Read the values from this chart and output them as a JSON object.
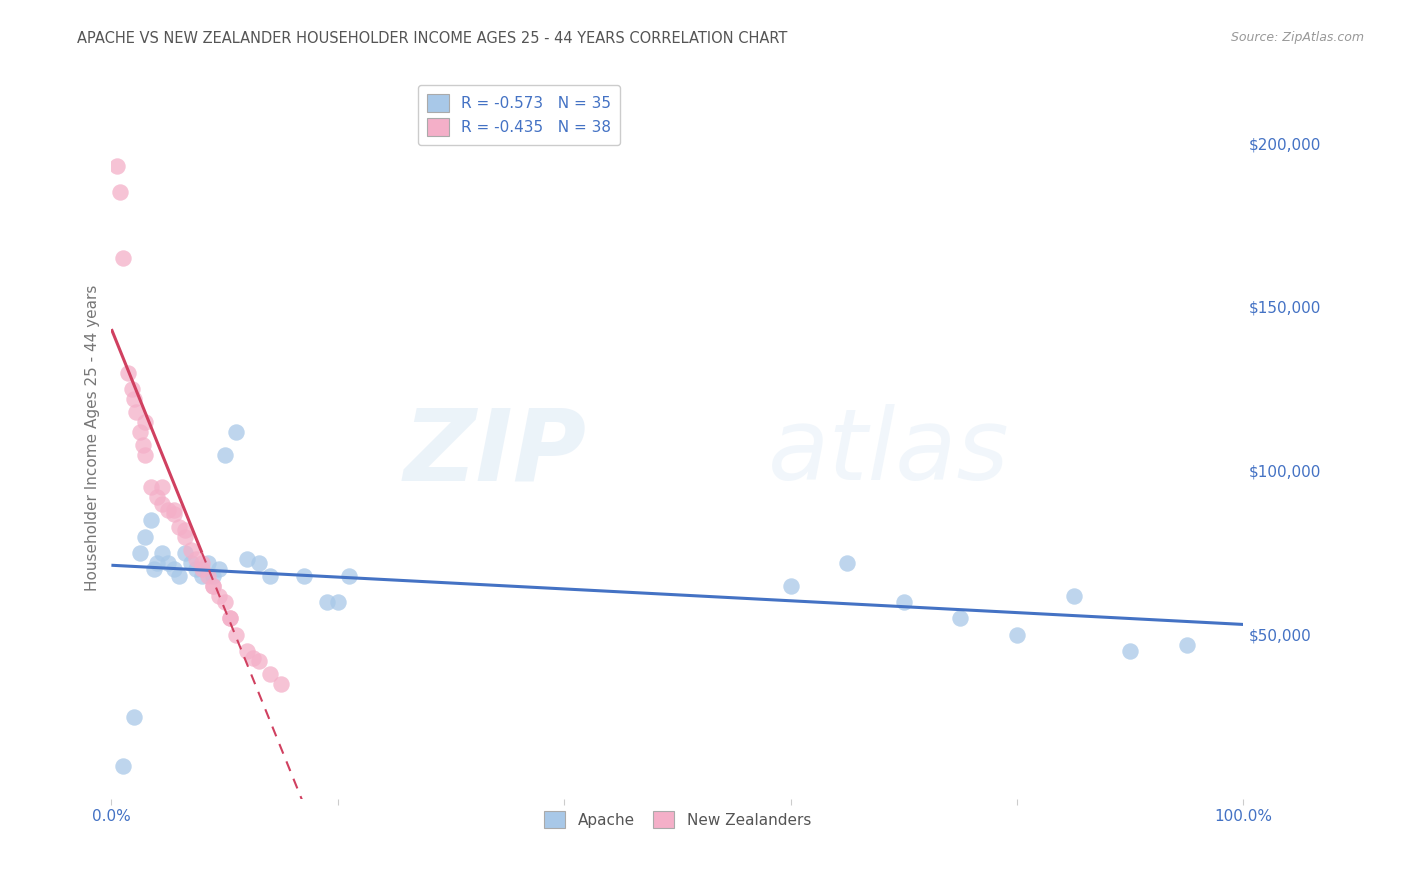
{
  "title": "APACHE VS NEW ZEALANDER HOUSEHOLDER INCOME AGES 25 - 44 YEARS CORRELATION CHART",
  "source": "Source: ZipAtlas.com",
  "ylabel": "Householder Income Ages 25 - 44 years",
  "legend_apache_r": "-0.573",
  "legend_apache_n": "35",
  "legend_nz_r": "-0.435",
  "legend_nz_n": "38",
  "apache_color": "#a8c8e8",
  "apache_line_color": "#4472c4",
  "nz_color": "#f4afc8",
  "nz_line_color": "#d04060",
  "apache_x": [
    1.0,
    2.0,
    2.5,
    3.0,
    3.5,
    3.8,
    4.0,
    4.5,
    5.0,
    5.5,
    6.0,
    6.5,
    7.0,
    7.5,
    8.0,
    8.5,
    9.0,
    9.5,
    10.0,
    11.0,
    12.0,
    13.0,
    14.0,
    17.0,
    19.0,
    20.0,
    21.0,
    60.0,
    65.0,
    70.0,
    75.0,
    80.0,
    85.0,
    90.0,
    95.0
  ],
  "apache_y": [
    10000,
    25000,
    75000,
    80000,
    85000,
    70000,
    72000,
    75000,
    72000,
    70000,
    68000,
    75000,
    72000,
    70000,
    68000,
    72000,
    68000,
    70000,
    105000,
    112000,
    73000,
    72000,
    68000,
    68000,
    60000,
    60000,
    68000,
    65000,
    72000,
    60000,
    55000,
    50000,
    62000,
    45000,
    47000
  ],
  "nz_x": [
    0.5,
    0.8,
    1.0,
    1.5,
    1.8,
    2.0,
    2.2,
    2.5,
    2.8,
    3.0,
    3.5,
    4.0,
    4.5,
    5.0,
    5.5,
    6.0,
    6.5,
    7.0,
    7.5,
    8.0,
    8.5,
    9.0,
    9.5,
    10.0,
    10.5,
    11.0,
    12.0,
    13.0,
    14.0,
    15.0,
    3.0,
    4.5,
    5.5,
    6.5,
    8.0,
    9.0,
    10.5,
    12.5
  ],
  "nz_y": [
    193000,
    185000,
    165000,
    130000,
    125000,
    122000,
    118000,
    112000,
    108000,
    105000,
    95000,
    92000,
    90000,
    88000,
    87000,
    83000,
    80000,
    76000,
    73000,
    70000,
    68000,
    65000,
    62000,
    60000,
    55000,
    50000,
    45000,
    42000,
    38000,
    35000,
    115000,
    95000,
    88000,
    82000,
    72000,
    65000,
    55000,
    43000
  ],
  "xlim": [
    0,
    100
  ],
  "ylim": [
    0,
    220000
  ],
  "background_color": "#ffffff",
  "grid_color": "#cccccc",
  "title_color": "#555555",
  "source_color": "#999999",
  "axis_color": "#4472c4"
}
